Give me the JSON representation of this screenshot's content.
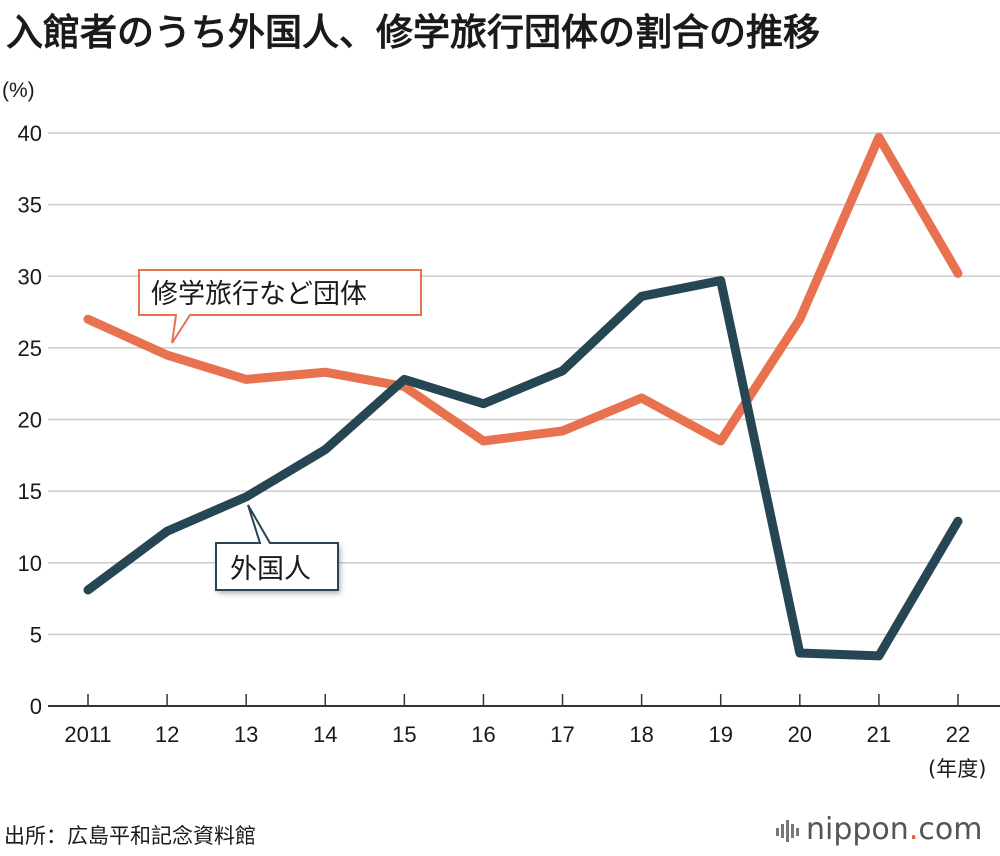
{
  "title": "入館者のうち外国人、修学旅行団体の割合の推移",
  "source": "出所：広島平和記念資料館",
  "brand": {
    "name": "nippon",
    "dot": ".",
    "tld": "com"
  },
  "colors": {
    "school": "#e8714f",
    "foreign": "#264653",
    "grid": "#cccccc",
    "axis": "#333333"
  },
  "chart_data": {
    "type": "line",
    "title": "入館者のうち外国人、修学旅行団体の割合の推移",
    "ylabel": "(%)",
    "xlabel": "(年度)",
    "categories": [
      "2011",
      "12",
      "13",
      "14",
      "15",
      "16",
      "17",
      "18",
      "19",
      "20",
      "21",
      "22"
    ],
    "ylim": [
      0,
      40
    ],
    "yticks": [
      0,
      5,
      10,
      15,
      20,
      25,
      30,
      35,
      40
    ],
    "grid": true,
    "series": [
      {
        "name": "修学旅行など団体",
        "key": "school",
        "values": [
          27.0,
          24.5,
          22.8,
          23.3,
          22.3,
          18.5,
          19.2,
          21.5,
          18.5,
          27.0,
          39.7,
          30.2
        ]
      },
      {
        "name": "外国人",
        "key": "foreign",
        "values": [
          8.1,
          12.2,
          14.6,
          17.9,
          22.8,
          21.1,
          23.4,
          28.6,
          29.7,
          3.7,
          3.5,
          12.9
        ]
      }
    ]
  }
}
